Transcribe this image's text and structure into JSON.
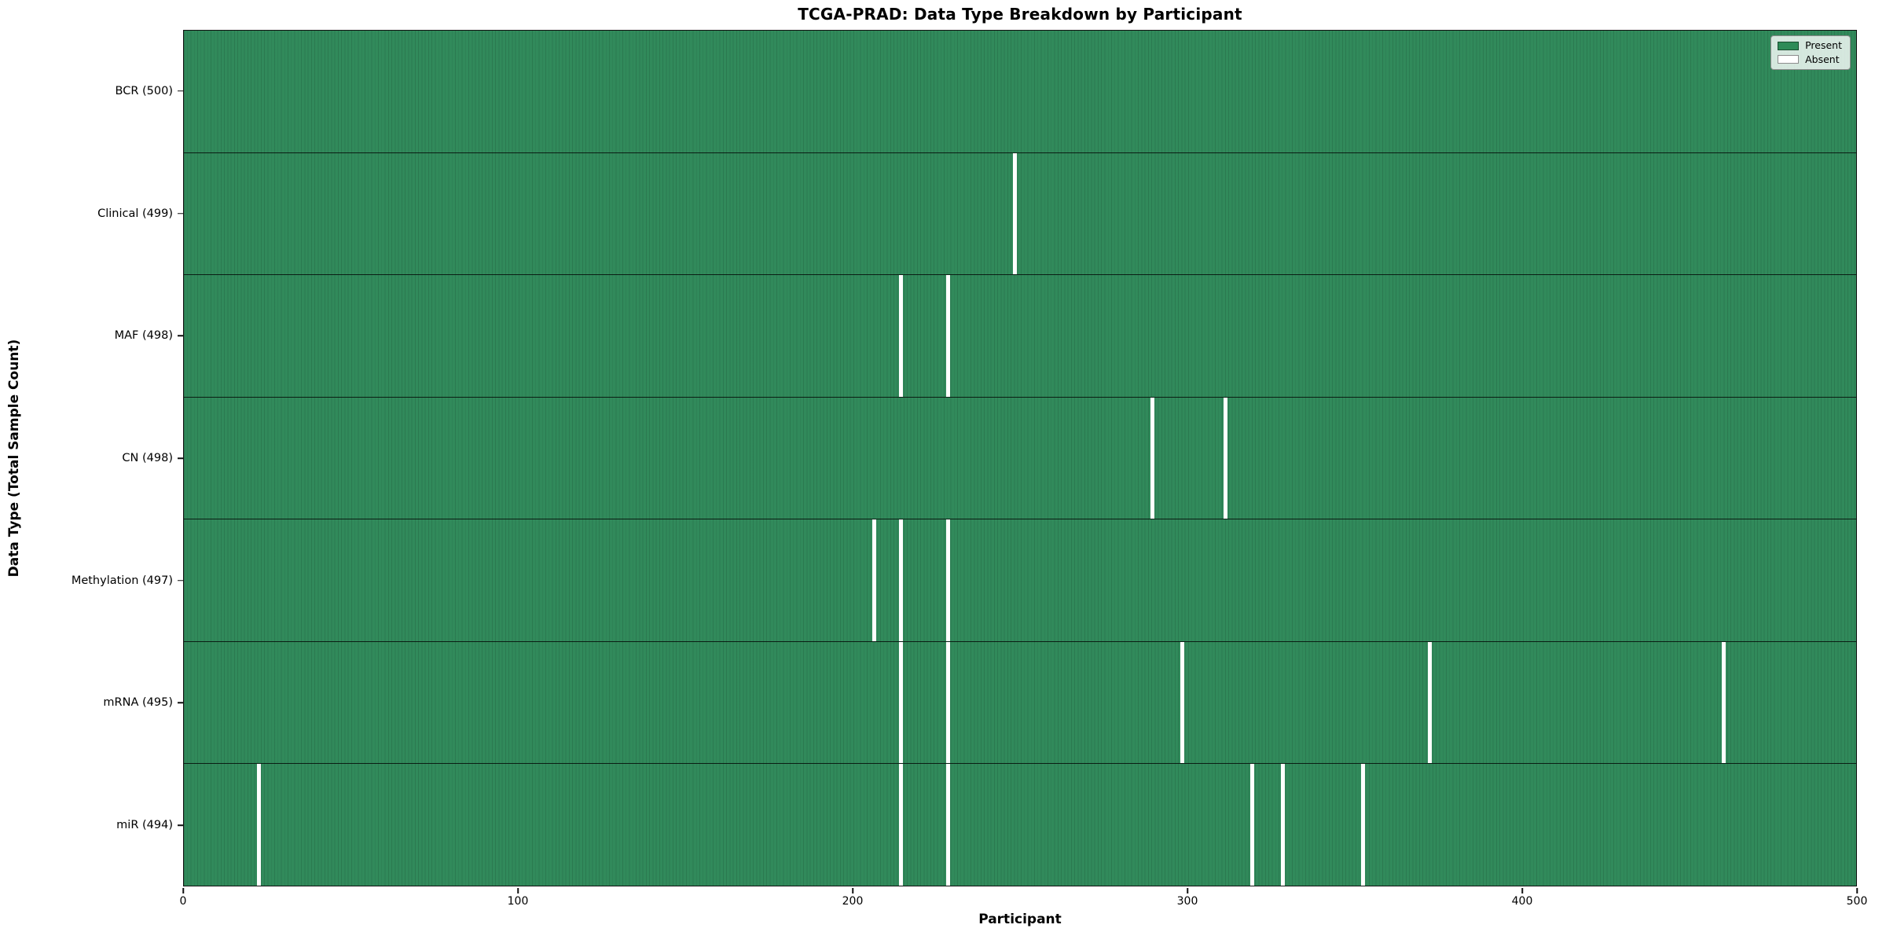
{
  "chart_data": {
    "type": "heatmap",
    "title": "TCGA-PRAD: Data Type Breakdown by Participant",
    "xlabel": "Participant",
    "ylabel": "Data Type (Total Sample Count)",
    "x_range": [
      0,
      500
    ],
    "x_ticks": [
      0,
      100,
      200,
      300,
      400,
      500
    ],
    "grid": false,
    "legend_position": "upper right",
    "legend": [
      {
        "label": "Present",
        "color": "#2E8B57"
      },
      {
        "label": "Absent",
        "color": "#FFFFFF"
      }
    ],
    "colors": {
      "present": "#318A5B",
      "absent": "#FFFFFF",
      "bar_edge": "#13392533"
    },
    "rows": [
      {
        "data_type": "BCR",
        "label": "BCR (500)",
        "total": 500,
        "absent_participants": []
      },
      {
        "data_type": "Clinical",
        "label": "Clinical (499)",
        "total": 499,
        "absent_participants": [
          248
        ]
      },
      {
        "data_type": "MAF",
        "label": "MAF (498)",
        "total": 498,
        "absent_participants": [
          214,
          228
        ]
      },
      {
        "data_type": "CN",
        "label": "CN (498)",
        "total": 498,
        "absent_participants": [
          289,
          311
        ]
      },
      {
        "data_type": "Methylation",
        "label": "Methylation (497)",
        "total": 497,
        "absent_participants": [
          206,
          214,
          228
        ]
      },
      {
        "data_type": "mRNA",
        "label": "mRNA (495)",
        "total": 495,
        "absent_participants": [
          214,
          228,
          298,
          372,
          460
        ]
      },
      {
        "data_type": "miR",
        "label": "miR (494)",
        "total": 494,
        "absent_participants": [
          22,
          214,
          228,
          319,
          328,
          352
        ]
      }
    ]
  }
}
